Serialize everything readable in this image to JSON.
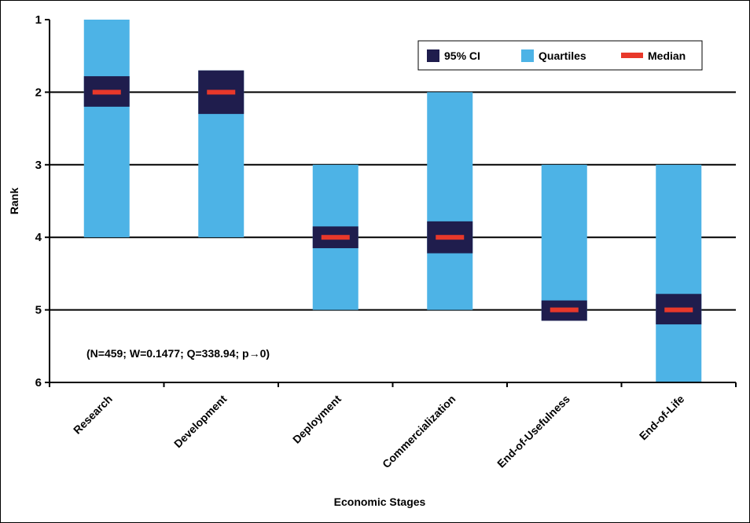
{
  "chart_data": {
    "type": "bar",
    "subtype": "floating-range",
    "categories": [
      "Research",
      "Development",
      "Deployment",
      "Commercialization",
      "End-of-Usefulness",
      "End-of-Life"
    ],
    "quartiles": [
      [
        1,
        4
      ],
      [
        1.7,
        4
      ],
      [
        3,
        5
      ],
      [
        2,
        5
      ],
      [
        3,
        5.15
      ],
      [
        3,
        6
      ]
    ],
    "ci95": [
      [
        1.78,
        2.2
      ],
      [
        1.7,
        2.3
      ],
      [
        3.85,
        4.15
      ],
      [
        3.78,
        4.22
      ],
      [
        4.87,
        5.15
      ],
      [
        4.78,
        5.2
      ]
    ],
    "median": [
      2,
      2,
      4,
      4,
      5,
      5
    ],
    "xlabel": "Economic Stages",
    "ylabel": "Rank",
    "ylim": [
      1,
      6
    ],
    "y_inverted": true,
    "yticks": [
      1,
      2,
      3,
      4,
      5,
      6
    ],
    "grid": "horizontal",
    "legend": {
      "placement": "top-right",
      "items": [
        {
          "label": "95% CI",
          "color": "#1f1d4d"
        },
        {
          "label": "Quartiles",
          "color": "#4db3e6"
        },
        {
          "label": "Median",
          "color": "#e8382a"
        }
      ]
    },
    "annotation": "(N=459; W=0.1477; Q=338.94; p→0)",
    "colors": {
      "ci": "#1f1d4d",
      "quartiles": "#4db3e6",
      "median": "#e8382a"
    }
  }
}
